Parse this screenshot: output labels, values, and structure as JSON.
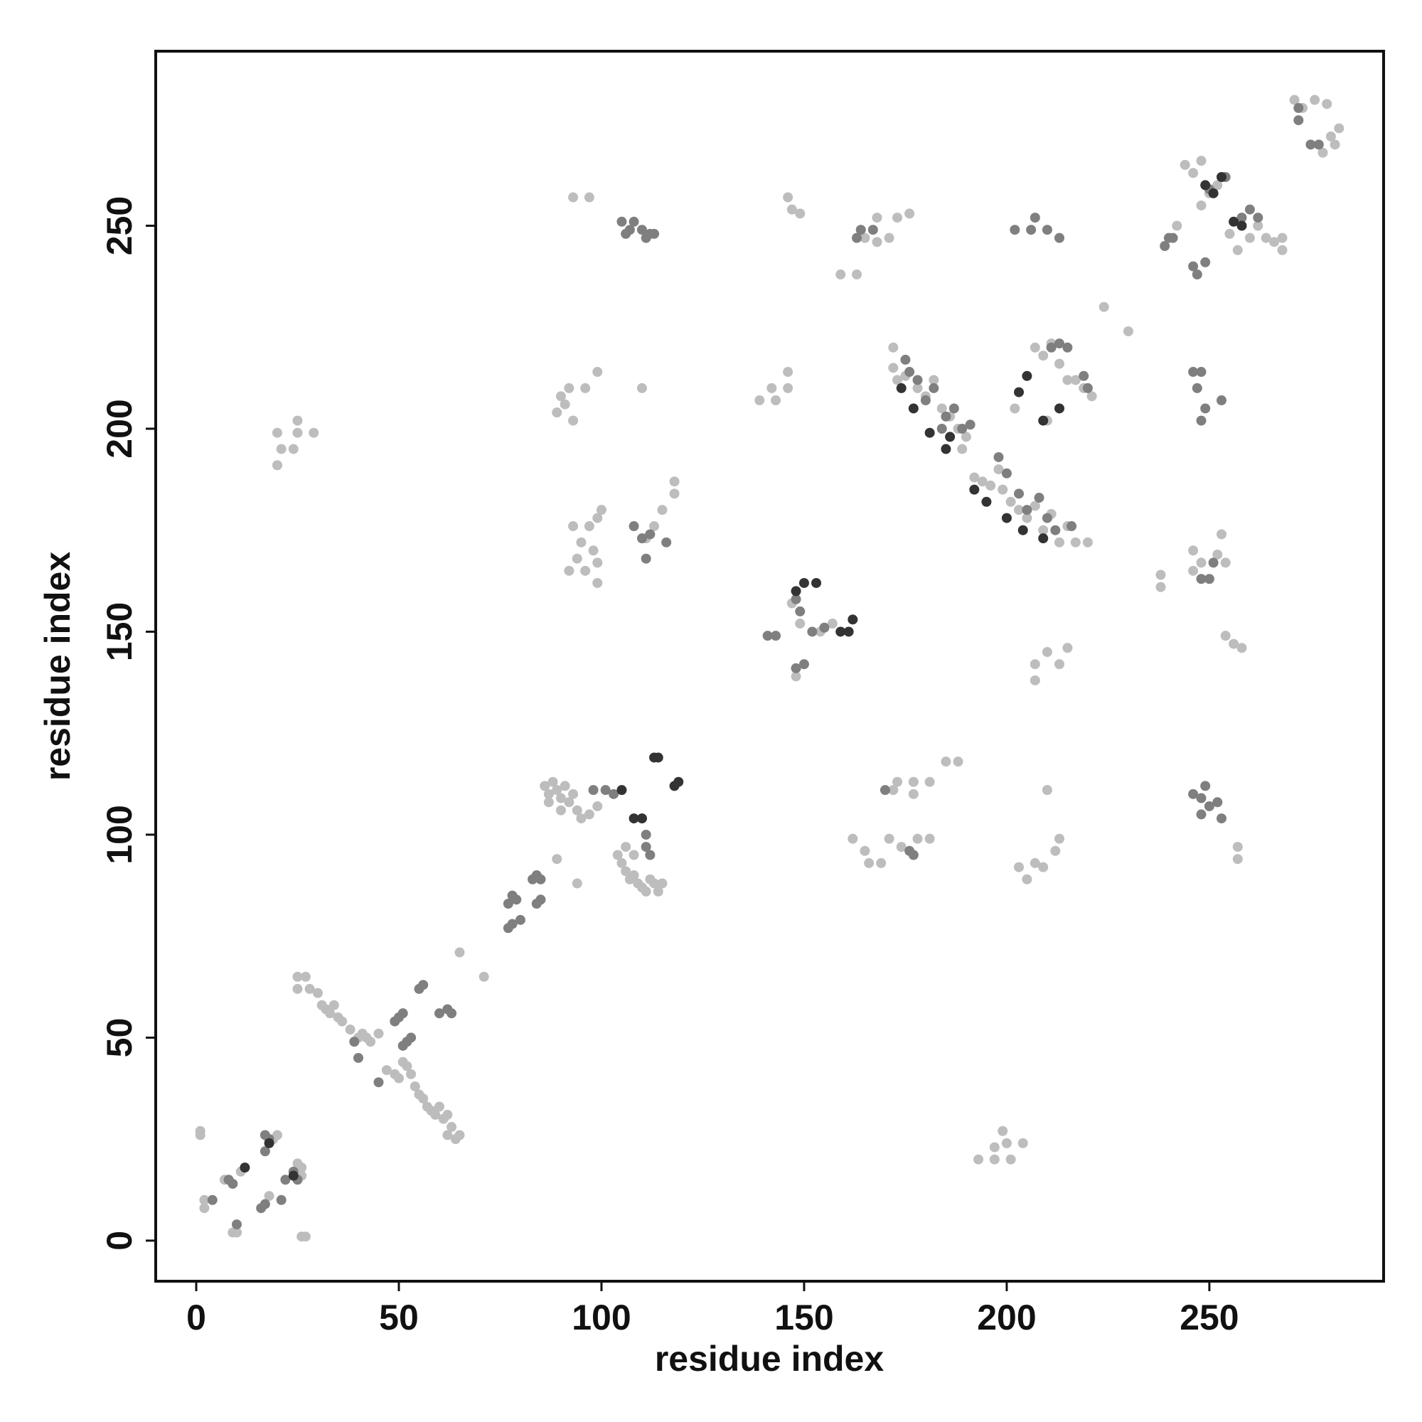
{
  "chart_data": {
    "type": "scatter",
    "x_label": "residue index",
    "y_label": "residue index",
    "xlim": [
      -10,
      293
    ],
    "ylim": [
      -10,
      293
    ],
    "xticks": [
      0,
      50,
      100,
      150,
      200,
      250
    ],
    "yticks": [
      0,
      50,
      100,
      150,
      200,
      250
    ],
    "series": [
      {
        "color": "#bdbdbd",
        "x": [
          1,
          1,
          2,
          2,
          9,
          10,
          26,
          27,
          7,
          11,
          18,
          19,
          20,
          25,
          26,
          26,
          25,
          27,
          25,
          28,
          30,
          31,
          32,
          33,
          34,
          35,
          36,
          38,
          40,
          41,
          42,
          43,
          45,
          47,
          49,
          50,
          51,
          52,
          53,
          54,
          55,
          56,
          57,
          58,
          59,
          60,
          61,
          62,
          62,
          63,
          64,
          65,
          65,
          71,
          86,
          87,
          88,
          89,
          90,
          91,
          92,
          93,
          94,
          95,
          97,
          99,
          87,
          90,
          104,
          105,
          106,
          107,
          108,
          109,
          110,
          111,
          112,
          113,
          114,
          115,
          106,
          108,
          89,
          94,
          20,
          20,
          21,
          25,
          25,
          29,
          24,
          93,
          97,
          146,
          147,
          149,
          165,
          168,
          171,
          173,
          176,
          168,
          159,
          163,
          89,
          91,
          93,
          92,
          96,
          99,
          90,
          93,
          95,
          97,
          99,
          100,
          98,
          99,
          94,
          92,
          96,
          99,
          110,
          111,
          113,
          115,
          118,
          118,
          139,
          142,
          143,
          146,
          146,
          148,
          147,
          149,
          154,
          157,
          172,
          172,
          173,
          175,
          178,
          180,
          182,
          184,
          186,
          188,
          189,
          190,
          192,
          194,
          196,
          198,
          199,
          201,
          203,
          205,
          207,
          209,
          211,
          213,
          215,
          217,
          220,
          207,
          209,
          211,
          213,
          217,
          219,
          221,
          215,
          224,
          230,
          202,
          210,
          244,
          246,
          248,
          242,
          248,
          250,
          252,
          255,
          257,
          260,
          262,
          264,
          266,
          268,
          268,
          271,
          273,
          276,
          279,
          278,
          280,
          282,
          281,
          172,
          173,
          177,
          177,
          181,
          185,
          188,
          162,
          165,
          166,
          169,
          171,
          174,
          178,
          181,
          207,
          210,
          213,
          215,
          212,
          213,
          207,
          203,
          205,
          209,
          210,
          207,
          193,
          197,
          197,
          199,
          200,
          201,
          204,
          238,
          238,
          246,
          246,
          248,
          252,
          253,
          254,
          254,
          256,
          258,
          257,
          257
        ],
        "values": [
          27,
          26,
          10,
          8,
          2,
          2,
          1,
          1,
          15,
          17,
          11,
          25,
          26,
          19,
          18,
          16,
          65,
          65,
          62,
          62,
          61,
          58,
          57,
          56,
          58,
          55,
          54,
          52,
          50,
          51,
          50,
          49,
          51,
          42,
          41,
          40,
          44,
          43,
          41,
          38,
          36,
          35,
          33,
          32,
          31,
          33,
          30,
          31,
          26,
          28,
          25,
          26,
          71,
          65,
          112,
          110,
          113,
          111,
          109,
          112,
          108,
          110,
          106,
          104,
          105,
          107,
          108,
          106,
          95,
          93,
          91,
          89,
          90,
          88,
          87,
          86,
          89,
          88,
          86,
          88,
          97,
          95,
          94,
          88,
          199,
          191,
          195,
          202,
          199,
          199,
          195,
          257,
          257,
          257,
          254,
          253,
          247,
          246,
          247,
          252,
          253,
          252,
          238,
          238,
          204,
          206,
          202,
          210,
          210,
          214,
          208,
          176,
          172,
          176,
          178,
          180,
          170,
          167,
          168,
          165,
          165,
          162,
          210,
          173,
          176,
          180,
          187,
          184,
          207,
          210,
          207,
          210,
          214,
          139,
          157,
          152,
          150,
          152,
          220,
          215,
          212,
          213,
          210,
          208,
          212,
          205,
          203,
          200,
          195,
          198,
          188,
          187,
          186,
          190,
          185,
          182,
          180,
          178,
          181,
          175,
          179,
          172,
          176,
          172,
          172,
          220,
          218,
          221,
          216,
          212,
          210,
          208,
          212,
          230,
          224,
          205,
          202,
          265,
          263,
          266,
          250,
          255,
          258,
          260,
          248,
          244,
          247,
          250,
          247,
          246,
          247,
          244,
          281,
          279,
          281,
          280,
          268,
          272,
          274,
          270,
          111,
          113,
          113,
          110,
          113,
          118,
          118,
          99,
          96,
          93,
          93,
          99,
          97,
          99,
          99,
          142,
          145,
          142,
          146,
          96,
          99,
          93,
          92,
          89,
          92,
          111,
          138,
          20,
          20,
          23,
          27,
          24,
          20,
          24,
          164,
          161,
          170,
          165,
          167,
          169,
          174,
          167,
          149,
          147,
          146,
          97,
          94
        ]
      },
      {
        "color": "#7f7f7f",
        "x": [
          4,
          8,
          9,
          10,
          16,
          17,
          17,
          17,
          18,
          21,
          22,
          24,
          25,
          39,
          40,
          45,
          49,
          50,
          51,
          55,
          56,
          62,
          63,
          51,
          52,
          53,
          60,
          77,
          78,
          79,
          77,
          78,
          80,
          83,
          84,
          85,
          84,
          85,
          98,
          101,
          103,
          111,
          112,
          111,
          110,
          105,
          107,
          108,
          110,
          112,
          113,
          111,
          106,
          108,
          110,
          111,
          112,
          116,
          141,
          143,
          148,
          149,
          152,
          155,
          148,
          150,
          163,
          164,
          167,
          170,
          176,
          177,
          175,
          176,
          178,
          180,
          182,
          184,
          185,
          187,
          189,
          191,
          198,
          200,
          203,
          205,
          208,
          210,
          212,
          216,
          202,
          206,
          207,
          210,
          213,
          211,
          213,
          215,
          219,
          220,
          239,
          240,
          241,
          246,
          247,
          249,
          250,
          254,
          258,
          260,
          262,
          272,
          272,
          277,
          275,
          246,
          247,
          248,
          249,
          248,
          253,
          246,
          248,
          249,
          250,
          252,
          253,
          248,
          248,
          250,
          251
        ],
        "values": [
          10,
          15,
          14,
          4,
          8,
          9,
          22,
          26,
          25,
          10,
          15,
          17,
          15,
          49,
          45,
          39,
          54,
          55,
          56,
          62,
          63,
          57,
          56,
          48,
          49,
          50,
          56,
          83,
          85,
          84,
          77,
          78,
          79,
          89,
          90,
          89,
          83,
          84,
          111,
          111,
          110,
          97,
          95,
          100,
          104,
          251,
          249,
          251,
          249,
          248,
          248,
          247,
          248,
          176,
          173,
          168,
          174,
          172,
          149,
          149,
          158,
          155,
          150,
          151,
          141,
          142,
          247,
          249,
          249,
          111,
          96,
          95,
          217,
          214,
          212,
          207,
          210,
          200,
          203,
          205,
          200,
          201,
          193,
          189,
          184,
          180,
          183,
          178,
          175,
          176,
          249,
          249,
          252,
          249,
          247,
          220,
          221,
          220,
          213,
          210,
          245,
          247,
          247,
          240,
          238,
          241,
          259,
          262,
          252,
          254,
          252,
          279,
          276,
          270,
          270,
          214,
          210,
          214,
          205,
          202,
          207,
          110,
          109,
          112,
          107,
          108,
          104,
          105,
          163,
          163,
          167
        ]
      },
      {
        "color": "#333333",
        "x": [
          12,
          18,
          24,
          113,
          114,
          119,
          118,
          105,
          108,
          110,
          150,
          153,
          148,
          162,
          159,
          161,
          174,
          177,
          181,
          186,
          192,
          195,
          200,
          204,
          209,
          205,
          203,
          209,
          213,
          185,
          251,
          249,
          256,
          258,
          253
        ],
        "values": [
          18,
          24,
          16,
          119,
          119,
          113,
          112,
          111,
          104,
          104,
          162,
          162,
          160,
          153,
          150,
          150,
          210,
          205,
          199,
          198,
          185,
          182,
          178,
          175,
          173,
          213,
          209,
          202,
          205,
          195,
          258,
          260,
          251,
          250,
          262
        ]
      }
    ]
  }
}
